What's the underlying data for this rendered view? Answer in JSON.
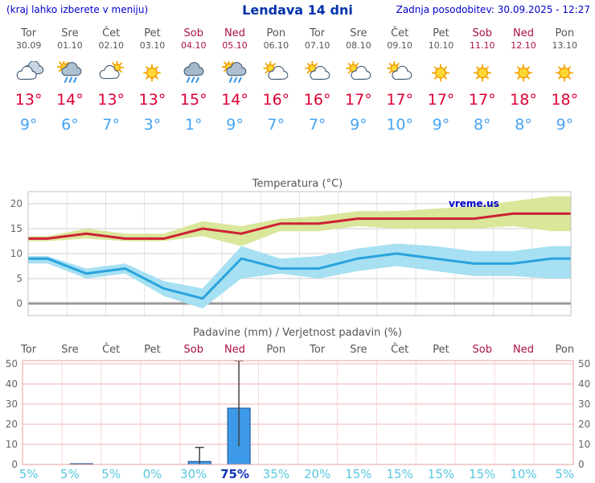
{
  "header": {
    "note": "(kraj lahko izberete v meniju)",
    "title": "Lendava 14 dni",
    "updated": "Zadnja posodobitev: 30.09.2025 - 12:27"
  },
  "forecast": {
    "days": [
      {
        "name": "Tor",
        "date": "30.09",
        "weekend": false,
        "icon": "cloudy",
        "tmax": "13°",
        "tmin": "9°"
      },
      {
        "name": "Sre",
        "date": "01.10",
        "weekend": false,
        "icon": "sun-rain",
        "tmax": "14°",
        "tmin": "6°"
      },
      {
        "name": "Čet",
        "date": "02.10",
        "weekend": false,
        "icon": "mostly-cloudy",
        "tmax": "13°",
        "tmin": "7°"
      },
      {
        "name": "Pet",
        "date": "03.10",
        "weekend": false,
        "icon": "sunny",
        "tmax": "13°",
        "tmin": "3°"
      },
      {
        "name": "Sob",
        "date": "04.10",
        "weekend": true,
        "icon": "rain",
        "tmax": "15°",
        "tmin": "1°"
      },
      {
        "name": "Ned",
        "date": "05.10",
        "weekend": true,
        "icon": "sun-rain",
        "tmax": "14°",
        "tmin": "9°"
      },
      {
        "name": "Pon",
        "date": "06.10",
        "weekend": false,
        "icon": "partly-cloudy",
        "tmax": "16°",
        "tmin": "7°"
      },
      {
        "name": "Tor",
        "date": "07.10",
        "weekend": false,
        "icon": "partly-cloudy",
        "tmax": "16°",
        "tmin": "7°"
      },
      {
        "name": "Sre",
        "date": "08.10",
        "weekend": false,
        "icon": "partly-cloudy",
        "tmax": "17°",
        "tmin": "9°"
      },
      {
        "name": "Čet",
        "date": "09.10",
        "weekend": false,
        "icon": "partly-cloudy",
        "tmax": "17°",
        "tmin": "10°"
      },
      {
        "name": "Pet",
        "date": "10.10",
        "weekend": false,
        "icon": "sunny",
        "tmax": "17°",
        "tmin": "9°"
      },
      {
        "name": "Sob",
        "date": "11.10",
        "weekend": true,
        "icon": "sunny",
        "tmax": "17°",
        "tmin": "8°"
      },
      {
        "name": "Ned",
        "date": "12.10",
        "weekend": true,
        "icon": "sunny",
        "tmax": "18°",
        "tmin": "8°"
      },
      {
        "name": "Pon",
        "date": "13.10",
        "weekend": false,
        "icon": "sunny",
        "tmax": "18°",
        "tmin": "9°"
      }
    ]
  },
  "chart_data": [
    {
      "type": "line",
      "title": "Temperatura (°C)",
      "watermark": "vreme.us",
      "categories": [
        "Tor",
        "Sre",
        "Čet",
        "Pet",
        "Sob",
        "Ned",
        "Pon",
        "Tor",
        "Sre",
        "Čet",
        "Pet",
        "Sob",
        "Ned",
        "Pon"
      ],
      "yticks": [
        0,
        5,
        10,
        15,
        20
      ],
      "ylim": [
        -2.5,
        22.5
      ],
      "grid": true,
      "series": [
        {
          "name": "max",
          "color": "#cc2233",
          "values": [
            13,
            14,
            13,
            13,
            15,
            14,
            16,
            16,
            17,
            17,
            17,
            17,
            18,
            18
          ]
        },
        {
          "name": "min",
          "color": "#29a3dd",
          "values": [
            9,
            6,
            7,
            3,
            1,
            9,
            7,
            7,
            9,
            10,
            9,
            8,
            8,
            9
          ]
        }
      ],
      "bands": [
        {
          "name": "max-range",
          "color": "#d9e79b",
          "upper": [
            13.5,
            15,
            14,
            14,
            16.5,
            15.5,
            17,
            17.5,
            18.5,
            18.5,
            19,
            19.5,
            20.5,
            21.5
          ],
          "lower": [
            12.5,
            13,
            12.5,
            12.5,
            13.5,
            11.5,
            14.5,
            14.5,
            15.5,
            15,
            15,
            15,
            15.5,
            14.5
          ]
        },
        {
          "name": "min-range",
          "color": "#a6e0f2",
          "upper": [
            9.5,
            7,
            8,
            4.5,
            3,
            11.5,
            9,
            9.5,
            11,
            12,
            11.5,
            10.5,
            10.5,
            11.5
          ],
          "lower": [
            8,
            5,
            6,
            1.5,
            -1,
            5,
            6,
            5,
            6.5,
            7.5,
            6.5,
            5.5,
            5.5,
            5
          ]
        }
      ]
    },
    {
      "type": "bar",
      "title": "Padavine (mm) / Verjetnost padavin (%)",
      "categories": [
        "Tor",
        "Sre",
        "Čet",
        "Pet",
        "Sob",
        "Ned",
        "Pon",
        "Tor",
        "Sre",
        "Čet",
        "Pet",
        "Sob",
        "Ned",
        "Pon"
      ],
      "weekend_idx": [
        4,
        5,
        11,
        12
      ],
      "yticks": [
        0,
        10,
        20,
        30,
        40,
        50
      ],
      "ylim": [
        0,
        52
      ],
      "values": [
        0,
        0.4,
        0,
        0,
        1.5,
        28,
        0,
        0,
        0,
        0,
        0,
        0,
        0,
        0
      ],
      "whisker_low": [
        null,
        null,
        null,
        null,
        0,
        9,
        null,
        null,
        null,
        null,
        null,
        null,
        null,
        null
      ],
      "whisker_high": [
        null,
        null,
        null,
        null,
        8.5,
        51.5,
        null,
        null,
        null,
        null,
        null,
        null,
        null,
        null
      ],
      "probabilities": [
        "5%",
        "5%",
        "5%",
        "0%",
        "30%",
        "75%",
        "35%",
        "20%",
        "15%",
        "15%",
        "15%",
        "15%",
        "10%",
        "5%"
      ],
      "emphasis_idx": [
        5
      ]
    }
  ],
  "colors": {
    "link_blue": "#0000cc",
    "title_blue": "#0033aa",
    "weekday_gray": "#555555",
    "weekend_red": "#aa1144",
    "tmax_red": "#dd0033",
    "tmin_blue": "#48a4f2",
    "temp_max_line": "#cc2233",
    "temp_min_line": "#29a3dd",
    "temp_max_band": "#d9e79b",
    "temp_min_band": "#a6e0f2",
    "precip_bar": "#3d9ae8",
    "precip_bar_border": "#1a4f90",
    "precip_grid_pink": "#f0b2b2",
    "probability_cyan": "#55c8e0",
    "probability_emphasis": "#1133bb"
  }
}
